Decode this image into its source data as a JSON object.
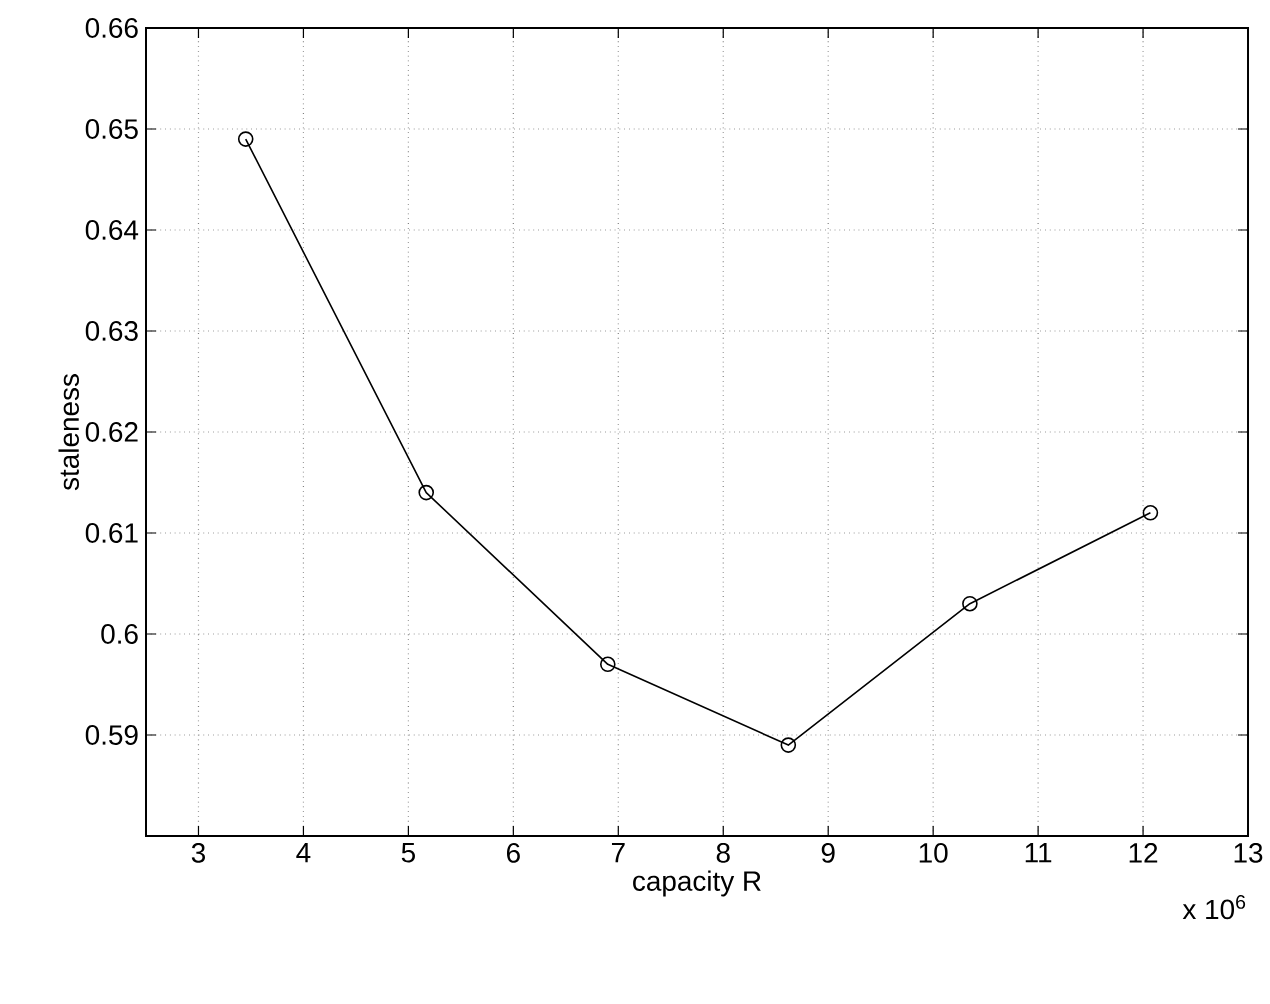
{
  "chart_data": {
    "type": "line",
    "xlabel": "capacity R",
    "ylabel": "staleness",
    "annotations": [
      "x 10$^{6}$"
    ],
    "x": [
      3.45,
      5.17,
      6.9,
      8.62,
      10.35,
      12.07
    ],
    "series": [
      {
        "color": "#000000",
        "values": [
          0.649,
          0.614,
          0.597,
          0.589,
          0.603,
          0.612
        ]
      }
    ],
    "xlim": [
      2.5,
      13
    ],
    "xticks": [
      3,
      4,
      5,
      6,
      7,
      8,
      9,
      10,
      11,
      12,
      13
    ],
    "ylim": [
      0.58,
      0.66
    ],
    "yticks": [
      0.59,
      0.6,
      0.61,
      0.62,
      0.63,
      0.64,
      0.65,
      0.66
    ],
    "grid": true,
    "marker": "circle",
    "line_style": "solid"
  }
}
